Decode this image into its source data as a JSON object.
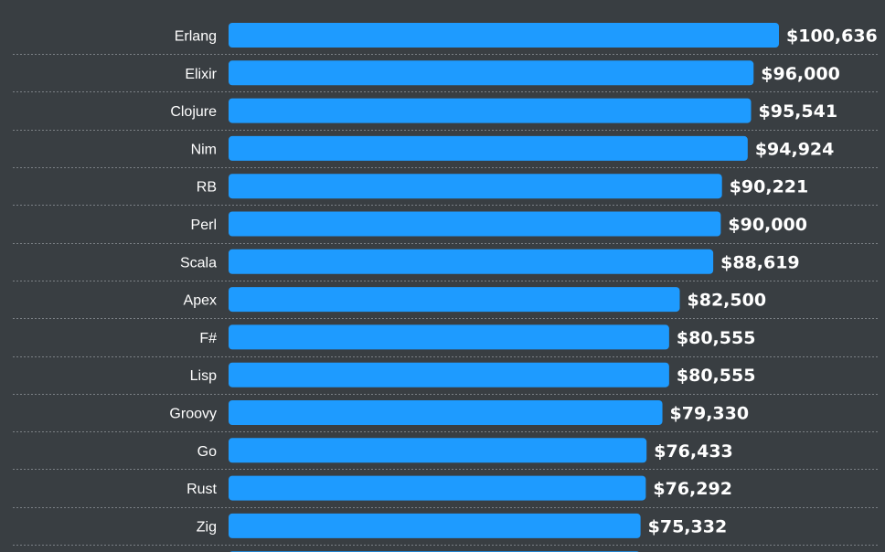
{
  "colors": {
    "background": "#393e42",
    "bar": "#1e9bff",
    "text": "#ffffff",
    "separator": "#7b8085"
  },
  "chart_data": {
    "type": "bar",
    "orientation": "horizontal",
    "title": "",
    "xlabel": "",
    "ylabel": "",
    "grid": false,
    "value_prefix": "$",
    "xlim": [
      0,
      100636
    ],
    "categories": [
      "Erlang",
      "Elixir",
      "Clojure",
      "Nim",
      "RB",
      "Perl",
      "Scala",
      "Apex",
      "F#",
      "Lisp",
      "Groovy",
      "Go",
      "Rust",
      "Zig"
    ],
    "values": [
      100636,
      96000,
      95541,
      94924,
      90221,
      90000,
      88619,
      82500,
      80555,
      80555,
      79330,
      76433,
      76292,
      75332
    ],
    "value_labels": [
      "$100,636",
      "$96,000",
      "$95,541",
      "$94,924",
      "$90,221",
      "$90,000",
      "$88,619",
      "$82,500",
      "$80,555",
      "$80,555",
      "$79,330",
      "$76,433",
      "$76,292",
      "$75,332"
    ]
  }
}
